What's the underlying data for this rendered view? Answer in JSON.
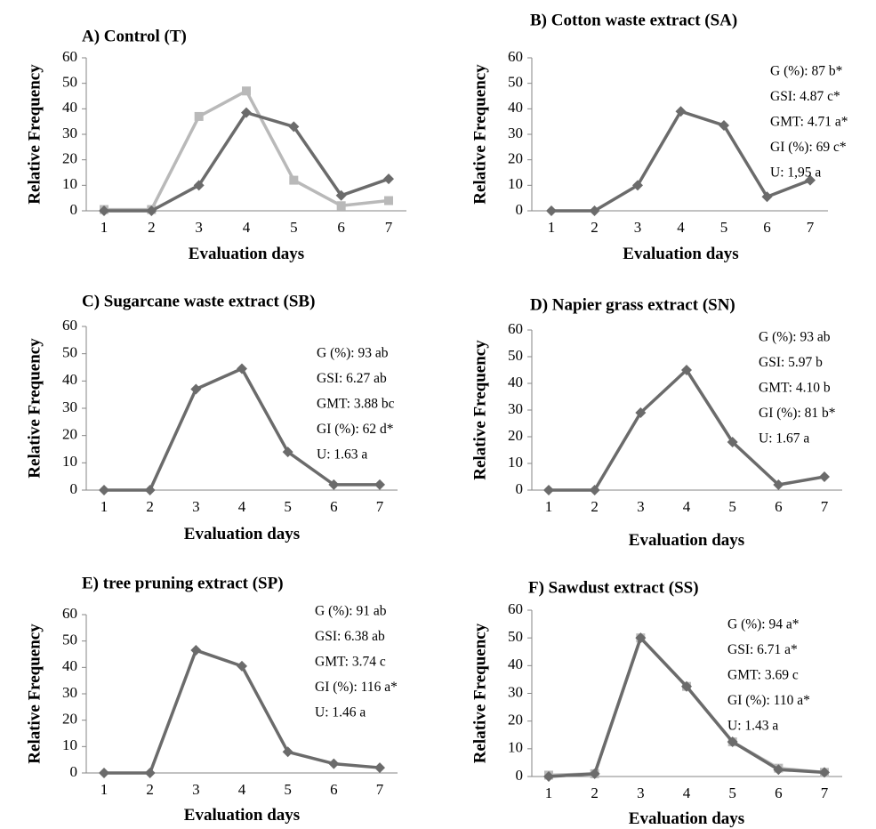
{
  "chart_data": [
    {
      "type": "line",
      "title": "A) Control (T)",
      "xlabel": "Evaluation days",
      "ylabel": "Relative Frequency",
      "categories": [
        "1",
        "2",
        "3",
        "4",
        "5",
        "6",
        "7"
      ],
      "ylim": [
        0,
        60
      ],
      "yticks": [
        "0",
        "10",
        "20",
        "30",
        "40",
        "50",
        "60"
      ],
      "series": [
        {
          "values": [
            0,
            0,
            10,
            38.5,
            33,
            6,
            12.5
          ],
          "color": "#6b6b6b",
          "marker": "diamond"
        },
        {
          "values": [
            0.5,
            0.5,
            37,
            47,
            12,
            2,
            4
          ],
          "color": "#b9b9b9",
          "marker": "square"
        }
      ],
      "stats": []
    },
    {
      "type": "line",
      "title": "B) Cotton waste extract (SA)",
      "xlabel": "Evaluation days",
      "ylabel": "Relative Frequency",
      "categories": [
        "1",
        "2",
        "3",
        "4",
        "5",
        "6",
        "7"
      ],
      "ylim": [
        0,
        60
      ],
      "yticks": [
        "0",
        "10",
        "20",
        "30",
        "40",
        "50",
        "60"
      ],
      "series": [
        {
          "values": [
            0,
            0,
            10,
            39,
            33.5,
            5.5,
            12
          ],
          "color": "#6b6b6b",
          "marker": "diamond"
        }
      ],
      "stats": [
        "G (%): 87 b*",
        "GSI: 4.87 c*",
        "GMT: 4.71 a*",
        "GI (%): 69 c*",
        "U: 1,95 a"
      ]
    },
    {
      "type": "line",
      "title": "C) Sugarcane waste extract (SB)",
      "xlabel": "Evaluation days",
      "ylabel": "Relative Frequency",
      "categories": [
        "1",
        "2",
        "3",
        "4",
        "5",
        "6",
        "7"
      ],
      "ylim": [
        0,
        60
      ],
      "yticks": [
        "0",
        "10",
        "20",
        "30",
        "40",
        "50",
        "60"
      ],
      "series": [
        {
          "values": [
            0,
            0,
            37,
            44.5,
            14,
            2,
            2
          ],
          "color": "#6b6b6b",
          "marker": "diamond"
        }
      ],
      "stats": [
        "G (%):  93 ab",
        "GSI: 6.27 ab",
        "GMT: 3.88 bc",
        "GI (%): 62 d*",
        "U: 1.63 a"
      ]
    },
    {
      "type": "line",
      "title": "D) Napier grass extract (SN)",
      "xlabel": "Evaluation days",
      "ylabel": "Relative Frequency",
      "categories": [
        "1",
        "2",
        "3",
        "4",
        "5",
        "6",
        "7"
      ],
      "ylim": [
        0,
        60
      ],
      "yticks": [
        "0",
        "10",
        "20",
        "30",
        "40",
        "50",
        "60"
      ],
      "series": [
        {
          "values": [
            0,
            0,
            29,
            45,
            18,
            2,
            5
          ],
          "color": "#6b6b6b",
          "marker": "diamond"
        }
      ],
      "stats": [
        "G (%):  93 ab",
        "GSI: 5.97 b",
        "GMT: 4.10 b",
        "GI (%): 81 b*",
        "U: 1.67 a"
      ]
    },
    {
      "type": "line",
      "title": "E) tree pruning extract (SP)",
      "xlabel": "Evaluation days",
      "ylabel": "Relative Frequency",
      "categories": [
        "1",
        "2",
        "3",
        "4",
        "5",
        "6",
        "7"
      ],
      "ylim": [
        0,
        60
      ],
      "yticks": [
        "0",
        "10",
        "20",
        "30",
        "40",
        "50",
        "60"
      ],
      "series": [
        {
          "values": [
            0,
            0,
            46.5,
            40.5,
            8,
            3.5,
            2
          ],
          "color": "#6b6b6b",
          "marker": "diamond"
        }
      ],
      "stats": [
        "G (%): 91 ab",
        "GSI: 6.38 ab",
        "GMT: 3.74 c",
        "GI (%): 116 a*",
        "U: 1.46 a"
      ]
    },
    {
      "type": "line",
      "title": "F) Sawdust extract (SS)",
      "xlabel": "Evaluation days",
      "ylabel": "Relative Frequency",
      "categories": [
        "1",
        "2",
        "3",
        "4",
        "5",
        "6",
        "7"
      ],
      "ylim": [
        0,
        60
      ],
      "yticks": [
        "0",
        "10",
        "20",
        "30",
        "40",
        "50",
        "60"
      ],
      "series": [
        {
          "values": [
            0,
            1,
            50,
            32.5,
            12.5,
            2.5,
            1.5
          ],
          "color": "#6b6b6b",
          "marker": "diamond"
        },
        {
          "values": [
            0.5,
            1,
            50,
            32.5,
            12.5,
            3,
            1.5
          ],
          "color": "#b9b9b9",
          "marker": "square"
        }
      ],
      "stats": [
        "G (%): 94 a*",
        "GSI: 6.71 a*",
        "GMT: 3.69  c",
        "GI (%): 110 a*",
        "U: 1.43 a"
      ]
    }
  ]
}
